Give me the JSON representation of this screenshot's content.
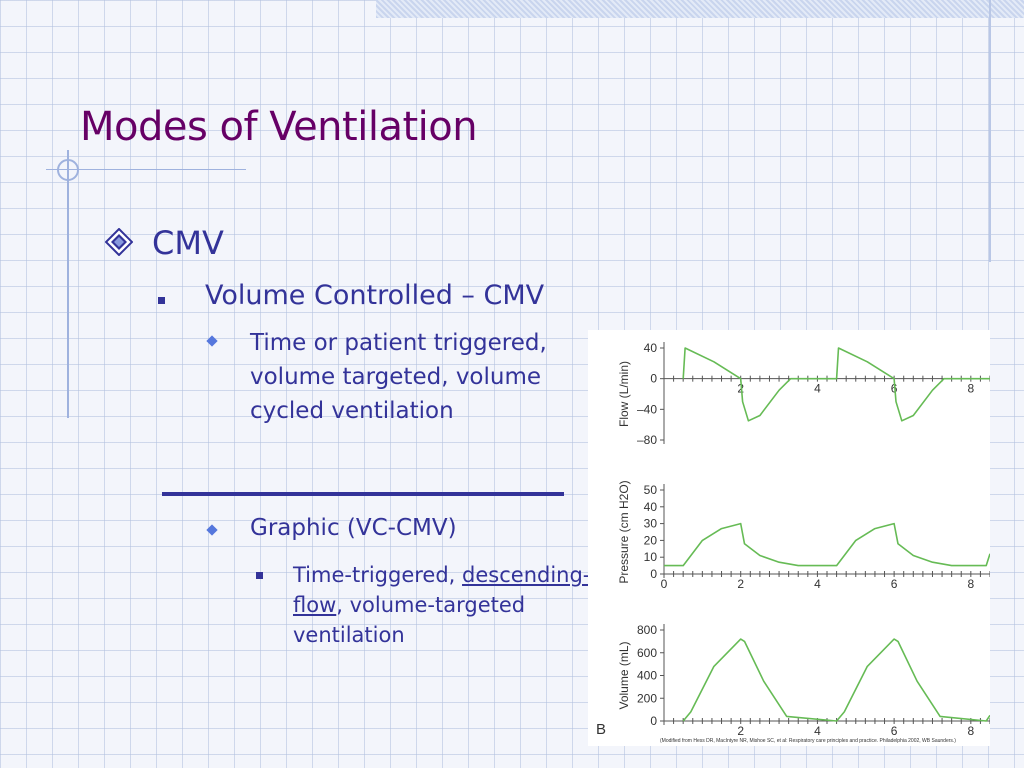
{
  "slide": {
    "title": "Modes of Ventilation",
    "level1": "CMV",
    "level2": "Volume Controlled – CMV",
    "level3a": "Time or patient triggered, volume targeted, volume cycled ventilation",
    "level3b": "Graphic (VC-CMV)",
    "level4_part1": "Time-triggered, ",
    "level4_link": "descending-flow",
    "level4_part2": ", volume-targeted ventilation"
  },
  "figure": {
    "panel_label": "B",
    "caption": "(Modified from Hess DR, MacIntyre NR, Mishoe SC, et al: Respiratory care principles and practice. Philadelphia 2002, WB Saunders.)"
  },
  "chart_data": [
    {
      "type": "line",
      "ylabel": "Flow (L/min)",
      "ylim": [
        -80,
        40
      ],
      "yticks": [
        "40",
        "0",
        "–40",
        "–80"
      ],
      "xticks": [
        "2",
        "4",
        "6",
        "8"
      ],
      "x": [
        0.5,
        0.55,
        1.3,
        2.0,
        2.05,
        2.2,
        2.5,
        3.0,
        3.3,
        4.5,
        4.55,
        5.3,
        6.0,
        6.05,
        6.2,
        6.5,
        7.0,
        7.3,
        8.5
      ],
      "series": [
        {
          "values": [
            0,
            40,
            22,
            0,
            -30,
            -55,
            -48,
            -15,
            0,
            0,
            40,
            22,
            0,
            -30,
            -55,
            -48,
            -15,
            0,
            0
          ]
        }
      ],
      "line_color": "#66bb55"
    },
    {
      "type": "line",
      "ylabel": "Pressure (cm H2O)",
      "ylim": [
        0,
        50
      ],
      "yticks": [
        "50",
        "40",
        "30",
        "20",
        "10",
        "0"
      ],
      "xticks": [
        "0",
        "2",
        "4",
        "6",
        "8"
      ],
      "x": [
        0,
        0.5,
        1.0,
        1.5,
        2.0,
        2.1,
        2.5,
        3.0,
        3.5,
        4.5,
        5.0,
        5.5,
        6.0,
        6.1,
        6.5,
        7.0,
        7.5,
        8.4,
        8.5
      ],
      "series": [
        {
          "values": [
            5,
            5,
            20,
            27,
            30,
            18,
            11,
            7,
            5,
            5,
            20,
            27,
            30,
            18,
            11,
            7,
            5,
            5,
            12
          ]
        }
      ],
      "line_color": "#66bb55"
    },
    {
      "type": "line",
      "ylabel": "Volume (mL)",
      "ylim": [
        0,
        800
      ],
      "yticks": [
        "800",
        "600",
        "400",
        "200",
        "0"
      ],
      "xticks": [
        "2",
        "4",
        "6",
        "8"
      ],
      "x": [
        0.5,
        0.7,
        1.3,
        2.0,
        2.1,
        2.6,
        3.2,
        4.5,
        4.7,
        5.3,
        6.0,
        6.1,
        6.6,
        7.2,
        8.4,
        8.5
      ],
      "series": [
        {
          "values": [
            0,
            80,
            480,
            720,
            700,
            350,
            40,
            0,
            80,
            480,
            720,
            700,
            350,
            40,
            0,
            50
          ]
        }
      ],
      "line_color": "#66bb55"
    }
  ]
}
